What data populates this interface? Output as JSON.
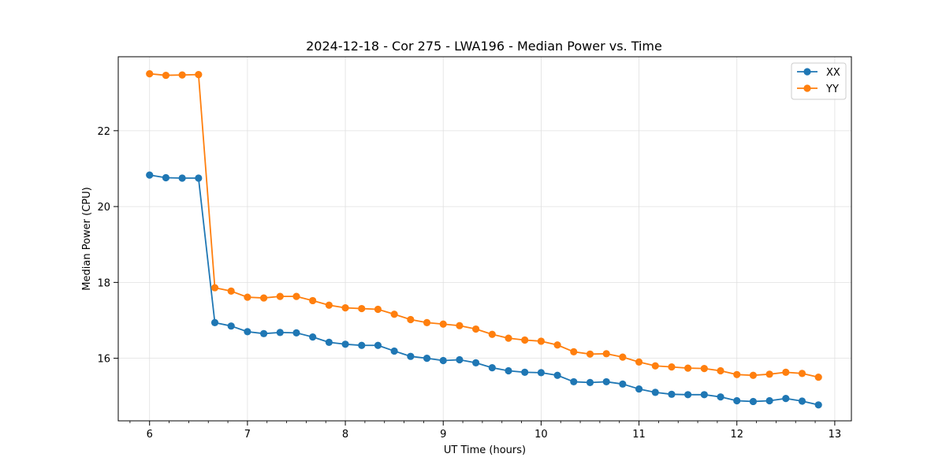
{
  "chart_data": {
    "type": "line",
    "title": "2024-12-18 - Cor 275 - LWA196 - Median Power vs. Time",
    "xlabel": "UT Time (hours)",
    "ylabel": "Median Power (CPU)",
    "xlim": [
      5.68,
      13.17
    ],
    "ylim": [
      14.35,
      23.95
    ],
    "xticks": [
      6,
      7,
      8,
      9,
      10,
      11,
      12,
      13
    ],
    "yticks": [
      16,
      18,
      20,
      22
    ],
    "grid": true,
    "legend_position": "top-right",
    "x": [
      6.0,
      6.1667,
      6.3333,
      6.5,
      6.6667,
      6.8333,
      7.0,
      7.1667,
      7.3333,
      7.5,
      7.6667,
      7.8333,
      8.0,
      8.1667,
      8.3333,
      8.5,
      8.6667,
      8.8333,
      9.0,
      9.1667,
      9.3333,
      9.5,
      9.6667,
      9.8333,
      10.0,
      10.1667,
      10.3333,
      10.5,
      10.6667,
      10.8333,
      11.0,
      11.1667,
      11.3333,
      11.5,
      11.6667,
      11.8333,
      12.0,
      12.1667,
      12.3333,
      12.5,
      12.6667,
      12.8333
    ],
    "series": [
      {
        "name": "XX",
        "color": "#1f77b4",
        "values": [
          20.83,
          20.76,
          20.75,
          20.75,
          16.94,
          16.85,
          16.7,
          16.65,
          16.68,
          16.67,
          16.56,
          16.42,
          16.37,
          16.34,
          16.34,
          16.19,
          16.05,
          16.0,
          15.94,
          15.96,
          15.88,
          15.75,
          15.67,
          15.63,
          15.62,
          15.55,
          15.38,
          15.36,
          15.38,
          15.32,
          15.19,
          15.1,
          15.05,
          15.04,
          15.04,
          14.98,
          14.88,
          14.86,
          14.88,
          14.94,
          14.87,
          14.77
        ]
      },
      {
        "name": "YY",
        "color": "#ff7f0e",
        "values": [
          23.5,
          23.46,
          23.47,
          23.48,
          17.86,
          17.77,
          17.61,
          17.59,
          17.63,
          17.63,
          17.52,
          17.4,
          17.33,
          17.31,
          17.29,
          17.16,
          17.02,
          16.94,
          16.9,
          16.86,
          16.77,
          16.63,
          16.53,
          16.48,
          16.45,
          16.35,
          16.17,
          16.11,
          16.12,
          16.03,
          15.9,
          15.8,
          15.77,
          15.74,
          15.73,
          15.67,
          15.57,
          15.55,
          15.58,
          15.63,
          15.6,
          15.5
        ]
      }
    ]
  }
}
